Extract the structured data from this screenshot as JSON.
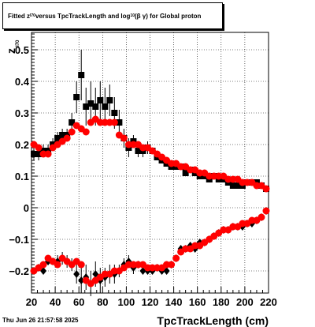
{
  "header": {
    "title_parts": [
      "Fitted  z",
      "I70",
      "  versus TpcTrackLength and log",
      "10",
      " (β  γ) for Global proton"
    ]
  },
  "footer": {
    "timestamp": "Thu Jun 26 21:57:58 2025"
  },
  "chart_data": {
    "type": "scatter",
    "xlabel": "TpcTrackLength (cm)",
    "ylabel": "z",
    "ylabel_sub": "I70",
    "xlim": [
      20,
      220
    ],
    "ylim": [
      -0.27,
      0.555
    ],
    "x_ticks": [
      20,
      40,
      60,
      80,
      100,
      120,
      140,
      160,
      180,
      200,
      220
    ],
    "y_ticks": [
      -0.2,
      -0.1,
      0,
      0.1,
      0.2,
      0.3,
      0.4,
      0.5
    ],
    "y_tick_labels": [
      "−0.2",
      "−0.1",
      "0",
      "0.1",
      "0.2",
      "0.3",
      "0.4",
      "0.5"
    ],
    "grid": true,
    "colors": {
      "black": "#000000",
      "red": "#ff0000"
    },
    "series": [
      {
        "marker": "square",
        "color": "#000000",
        "points": [
          [
            22,
            0.17
          ],
          [
            26,
            0.17
          ],
          [
            30,
            0.18
          ],
          [
            34,
            0.18
          ],
          [
            38,
            0.2
          ],
          [
            42,
            0.22
          ],
          [
            46,
            0.23
          ],
          [
            50,
            0.23
          ],
          [
            54,
            0.27
          ],
          [
            58,
            0.35
          ],
          [
            62,
            0.42
          ],
          [
            66,
            0.32
          ],
          [
            70,
            0.33
          ],
          [
            74,
            0.32
          ],
          [
            78,
            0.34
          ],
          [
            82,
            0.32
          ],
          [
            86,
            0.34
          ],
          [
            90,
            0.3
          ],
          [
            94,
            0.27
          ],
          [
            98,
            0.22
          ],
          [
            102,
            0.19
          ],
          [
            106,
            0.21
          ],
          [
            110,
            0.18
          ],
          [
            114,
            0.18
          ],
          [
            118,
            0.19
          ],
          [
            122,
            0.18
          ],
          [
            126,
            0.16
          ],
          [
            130,
            0.15
          ],
          [
            134,
            0.14
          ],
          [
            138,
            0.13
          ],
          [
            142,
            0.13
          ],
          [
            146,
            0.13
          ],
          [
            150,
            0.11
          ],
          [
            154,
            0.12
          ],
          [
            158,
            0.11
          ],
          [
            162,
            0.1
          ],
          [
            166,
            0.1
          ],
          [
            170,
            0.09
          ],
          [
            174,
            0.1
          ],
          [
            178,
            0.09
          ],
          [
            182,
            0.09
          ],
          [
            186,
            0.08
          ],
          [
            190,
            0.07
          ],
          [
            194,
            0.07
          ],
          [
            198,
            0.07
          ],
          [
            202,
            0.08
          ],
          [
            206,
            0.08
          ],
          [
            210,
            0.08
          ],
          [
            214,
            0.07
          ],
          [
            218,
            0.06
          ]
        ],
        "errors": [
          0.02,
          0.02,
          0.02,
          0.02,
          0.02,
          0.02,
          0.02,
          0.02,
          0.03,
          0.05,
          0.08,
          0.06,
          0.07,
          0.06,
          0.06,
          0.06,
          0.05,
          0.05,
          0.04,
          0.03,
          0.03,
          0.02,
          0.02,
          0.02,
          0.02,
          0.01,
          0.01,
          0.01,
          0.01,
          0.01,
          0.01,
          0.01,
          0.01,
          0.01,
          0.01,
          0.01,
          0.01,
          0.01,
          0.01,
          0.01,
          0.01,
          0.01,
          0.01,
          0.01,
          0.01,
          0.01,
          0.01,
          0.01,
          0.01,
          0.01
        ]
      },
      {
        "marker": "circle",
        "color": "#ff0000",
        "points": [
          [
            22,
            0.2
          ],
          [
            26,
            0.19
          ],
          [
            30,
            0.17
          ],
          [
            34,
            0.17
          ],
          [
            38,
            0.19
          ],
          [
            42,
            0.2
          ],
          [
            46,
            0.21
          ],
          [
            50,
            0.22
          ],
          [
            54,
            0.24
          ],
          [
            58,
            0.26
          ],
          [
            62,
            0.25
          ],
          [
            66,
            0.24
          ],
          [
            70,
            0.27
          ],
          [
            74,
            0.28
          ],
          [
            78,
            0.27
          ],
          [
            82,
            0.27
          ],
          [
            86,
            0.27
          ],
          [
            90,
            0.27
          ],
          [
            94,
            0.23
          ],
          [
            98,
            0.22
          ],
          [
            102,
            0.2
          ],
          [
            106,
            0.2
          ],
          [
            110,
            0.2
          ],
          [
            114,
            0.19
          ],
          [
            118,
            0.19
          ],
          [
            122,
            0.18
          ],
          [
            126,
            0.17
          ],
          [
            130,
            0.16
          ],
          [
            134,
            0.15
          ],
          [
            138,
            0.14
          ],
          [
            142,
            0.14
          ],
          [
            146,
            0.13
          ],
          [
            150,
            0.13
          ],
          [
            154,
            0.12
          ],
          [
            158,
            0.12
          ],
          [
            162,
            0.11
          ],
          [
            166,
            0.11
          ],
          [
            170,
            0.1
          ],
          [
            174,
            0.1
          ],
          [
            178,
            0.1
          ],
          [
            182,
            0.1
          ],
          [
            186,
            0.09
          ],
          [
            190,
            0.09
          ],
          [
            194,
            0.09
          ],
          [
            198,
            0.08
          ],
          [
            202,
            0.08
          ],
          [
            206,
            0.08
          ],
          [
            210,
            0.07
          ],
          [
            214,
            0.07
          ],
          [
            218,
            0.06
          ]
        ]
      },
      {
        "marker": "diamond",
        "color": "#000000",
        "points": [
          [
            22,
            -0.2
          ],
          [
            26,
            -0.19
          ],
          [
            30,
            -0.2
          ],
          [
            34,
            -0.17
          ],
          [
            38,
            -0.17
          ],
          [
            42,
            -0.17
          ],
          [
            46,
            -0.16
          ],
          [
            50,
            -0.17
          ],
          [
            54,
            -0.18
          ],
          [
            58,
            -0.21
          ],
          [
            62,
            -0.23
          ],
          [
            66,
            -0.22
          ],
          [
            70,
            -0.24
          ],
          [
            74,
            -0.21
          ],
          [
            78,
            -0.23
          ],
          [
            82,
            -0.22
          ],
          [
            86,
            -0.21
          ],
          [
            90,
            -0.21
          ],
          [
            94,
            -0.2
          ],
          [
            98,
            -0.18
          ],
          [
            102,
            -0.17
          ],
          [
            106,
            -0.19
          ],
          [
            110,
            -0.18
          ],
          [
            114,
            -0.2
          ],
          [
            118,
            -0.2
          ],
          [
            122,
            -0.2
          ],
          [
            126,
            -0.19
          ],
          [
            130,
            -0.2
          ],
          [
            134,
            -0.2
          ],
          [
            138,
            -0.18
          ],
          [
            142,
            -0.16
          ],
          [
            146,
            -0.13
          ],
          [
            150,
            -0.13
          ],
          [
            154,
            -0.12
          ],
          [
            158,
            -0.13
          ],
          [
            162,
            -0.11
          ],
          [
            166,
            -0.11
          ],
          [
            170,
            -0.1
          ],
          [
            174,
            -0.09
          ],
          [
            178,
            -0.08
          ],
          [
            182,
            -0.07
          ],
          [
            186,
            -0.07
          ],
          [
            190,
            -0.06
          ],
          [
            194,
            -0.06
          ],
          [
            198,
            -0.06
          ],
          [
            202,
            -0.05
          ],
          [
            206,
            -0.05
          ],
          [
            210,
            -0.04
          ],
          [
            214,
            -0.03
          ],
          [
            218,
            -0.01
          ]
        ],
        "errors": [
          0.01,
          0.01,
          0.01,
          0.01,
          0.01,
          0.02,
          0.02,
          0.02,
          0.02,
          0.03,
          0.04,
          0.04,
          0.04,
          0.04,
          0.04,
          0.03,
          0.03,
          0.03,
          0.02,
          0.02,
          0.02,
          0.02,
          0.01,
          0.01,
          0.01,
          0.01,
          0.01,
          0.01,
          0.01,
          0.01,
          0.01,
          0.01,
          0.01,
          0.01,
          0.01,
          0.01,
          0.01,
          0.01,
          0.01,
          0.01,
          0.01,
          0.01,
          0.01,
          0.01,
          0.01,
          0.01,
          0.01,
          0.01,
          0.01,
          0.01
        ]
      },
      {
        "marker": "circle",
        "color": "#ff0000",
        "points": [
          [
            22,
            -0.2
          ],
          [
            26,
            -0.19
          ],
          [
            30,
            -0.18
          ],
          [
            34,
            -0.16
          ],
          [
            38,
            -0.17
          ],
          [
            42,
            -0.18
          ],
          [
            46,
            -0.16
          ],
          [
            50,
            -0.17
          ],
          [
            54,
            -0.18
          ],
          [
            58,
            -0.17
          ],
          [
            62,
            -0.18
          ],
          [
            66,
            -0.23
          ],
          [
            70,
            -0.24
          ],
          [
            74,
            -0.23
          ],
          [
            78,
            -0.22
          ],
          [
            82,
            -0.21
          ],
          [
            86,
            -0.21
          ],
          [
            90,
            -0.2
          ],
          [
            94,
            -0.2
          ],
          [
            98,
            -0.19
          ],
          [
            102,
            -0.18
          ],
          [
            106,
            -0.18
          ],
          [
            110,
            -0.18
          ],
          [
            114,
            -0.18
          ],
          [
            118,
            -0.19
          ],
          [
            122,
            -0.19
          ],
          [
            126,
            -0.19
          ],
          [
            130,
            -0.19
          ],
          [
            134,
            -0.18
          ],
          [
            138,
            -0.18
          ],
          [
            142,
            -0.16
          ],
          [
            146,
            -0.14
          ],
          [
            150,
            -0.13
          ],
          [
            154,
            -0.13
          ],
          [
            158,
            -0.12
          ],
          [
            162,
            -0.12
          ],
          [
            166,
            -0.11
          ],
          [
            170,
            -0.1
          ],
          [
            174,
            -0.09
          ],
          [
            178,
            -0.08
          ],
          [
            182,
            -0.07
          ],
          [
            186,
            -0.07
          ],
          [
            190,
            -0.06
          ],
          [
            194,
            -0.06
          ],
          [
            198,
            -0.05
          ],
          [
            202,
            -0.05
          ],
          [
            206,
            -0.04
          ],
          [
            210,
            -0.04
          ],
          [
            214,
            -0.03
          ],
          [
            218,
            -0.01
          ]
        ]
      }
    ]
  }
}
